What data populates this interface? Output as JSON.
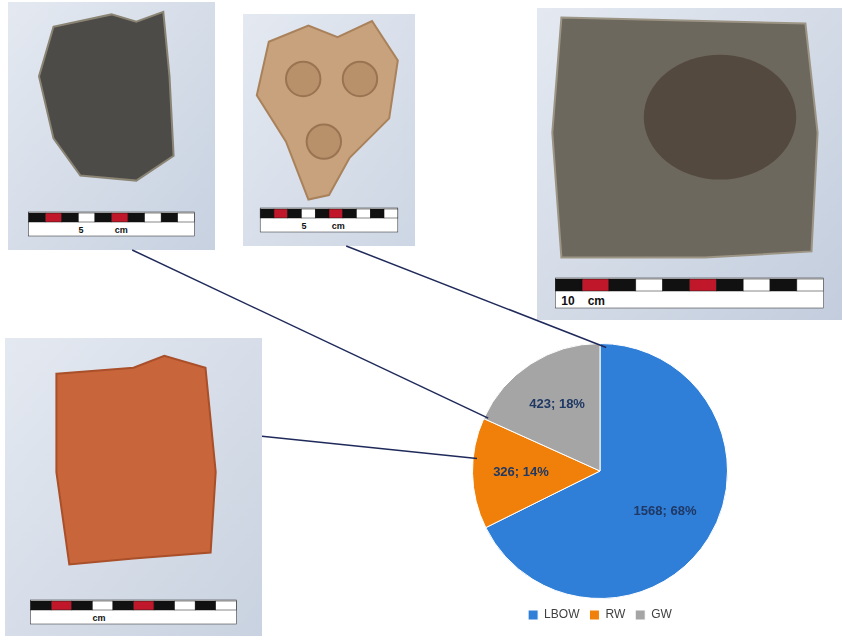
{
  "chart_data": {
    "type": "pie",
    "categories": [
      "LBOW",
      "RW",
      "GW"
    ],
    "values": [
      1568,
      326,
      423
    ],
    "value_labels": [
      "1568; 68%",
      "326; 14%",
      "423; 18%"
    ],
    "colors": [
      "#2f7ed8",
      "#f0800a",
      "#a5a5a5"
    ],
    "data_labels": true,
    "legend": "bottom"
  },
  "photos": [
    {
      "category": "GW",
      "scale_labels": [
        "5",
        "cm"
      ]
    },
    {
      "category": "LBOW",
      "scale_labels": [
        "5",
        "cm"
      ]
    },
    {
      "scale_labels": [
        "10",
        "cm"
      ]
    },
    {
      "category": "RW",
      "scale_labels": [
        "cm"
      ]
    }
  ]
}
